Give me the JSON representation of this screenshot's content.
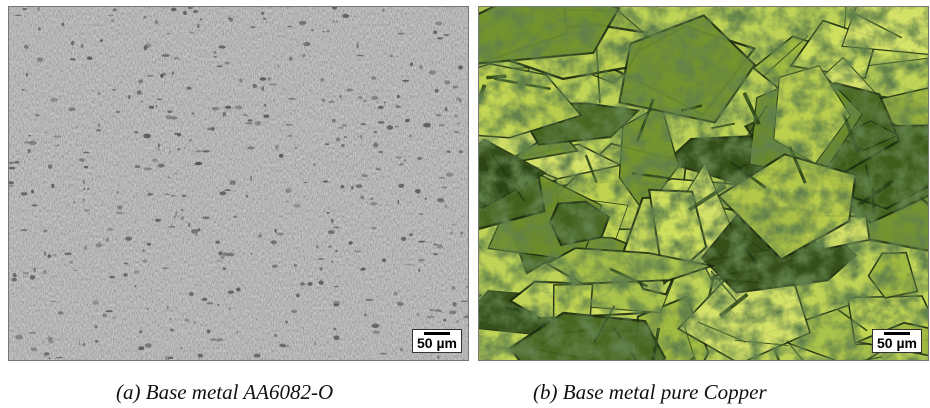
{
  "panels": [
    {
      "scale_label": "50 µm",
      "caption": "(a) Base metal AA6082-O"
    },
    {
      "scale_label": "50 µm",
      "caption": "(b) Base metal pure Copper"
    }
  ],
  "colors": {
    "aluminium_base": "#9b9b9b",
    "aluminium_dark_particles": "#4a4a4a",
    "copper_grain_light": "#c9dc5a",
    "copper_grain_dark": "#1f3a12",
    "copper_boundary": "#1a2a10"
  }
}
